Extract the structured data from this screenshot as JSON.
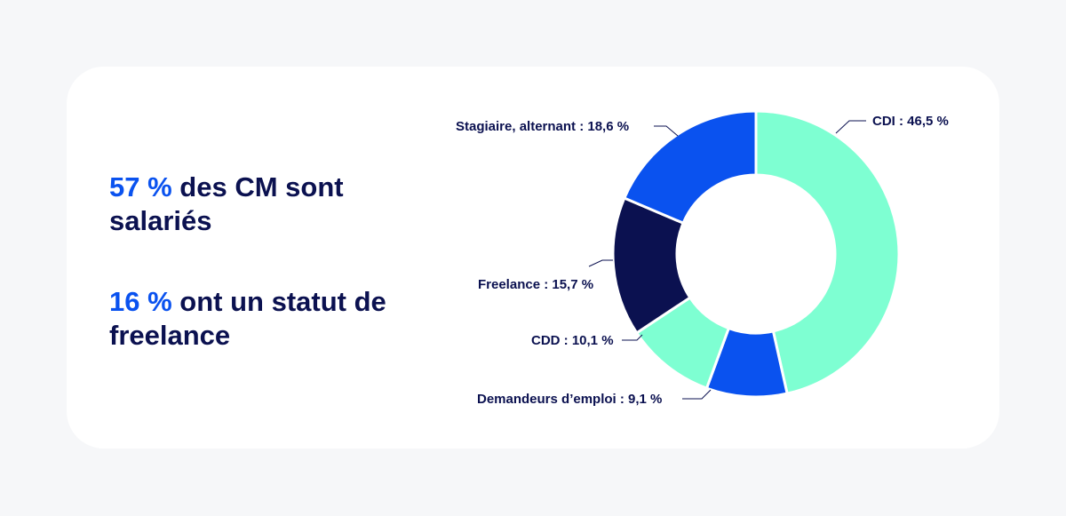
{
  "headlines": [
    {
      "highlight": "57 %",
      "text": " des CM sont salariés"
    },
    {
      "highlight": "16 %",
      "text": " ont un statut de freelance"
    }
  ],
  "colors": {
    "background": "#f6f7f9",
    "card": "#ffffff",
    "text": "#0b1150",
    "accent": "#0a52ef"
  },
  "chart_data": {
    "type": "pie",
    "variant": "donut",
    "slices": [
      {
        "label": "CDI : 46,5 %",
        "value": 46.5,
        "color": "#7effd2"
      },
      {
        "label": "Demandeurs d’emploi : 9,1 %",
        "value": 9.1,
        "color": "#0a52ef"
      },
      {
        "label": "CDD : 10,1 %",
        "value": 10.1,
        "color": "#7effd2"
      },
      {
        "label": "Freelance : 15,7 %",
        "value": 15.7,
        "color": "#0b1150"
      },
      {
        "label": "Stagiaire, alternant : 18,6 %",
        "value": 18.6,
        "color": "#0a52ef"
      }
    ]
  }
}
